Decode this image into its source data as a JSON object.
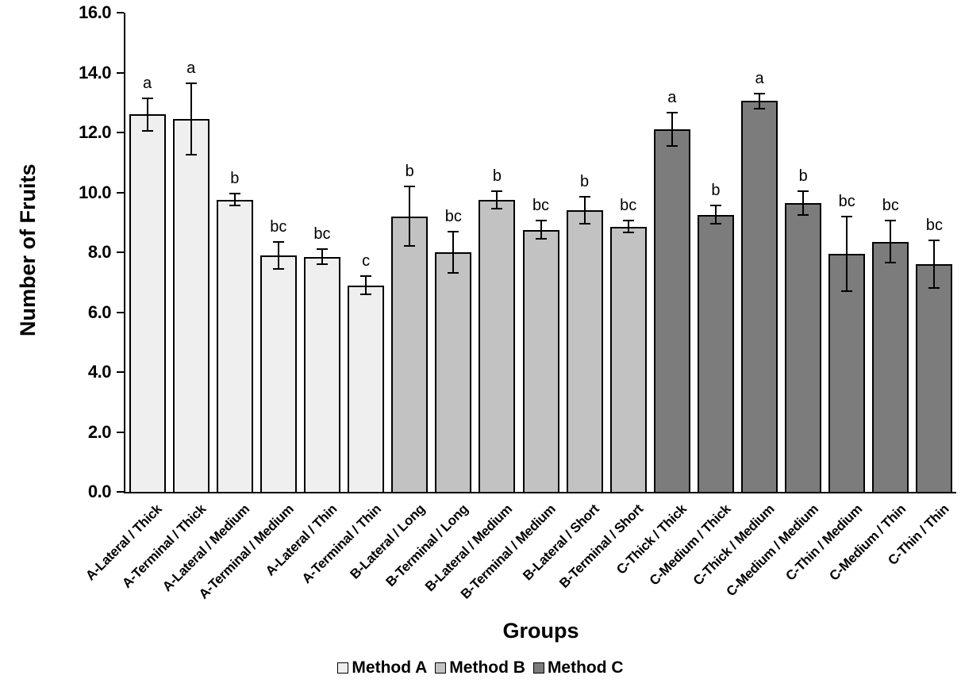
{
  "chart_data": {
    "type": "bar",
    "title": "",
    "xlabel": "Groups",
    "ylabel": "Number of Fruits",
    "ylim": [
      0,
      16
    ],
    "grid": false,
    "legend_position": "bottom",
    "yticks": [
      {
        "value": 0,
        "label": "0.0"
      },
      {
        "value": 2,
        "label": "2.0"
      },
      {
        "value": 4,
        "label": "4.0"
      },
      {
        "value": 6,
        "label": "6.0"
      },
      {
        "value": 8,
        "label": "8.0"
      },
      {
        "value": 10,
        "label": "10.0"
      },
      {
        "value": 12,
        "label": "12.0"
      },
      {
        "value": 14,
        "label": "14.0"
      },
      {
        "value": 16,
        "label": "16.0"
      }
    ],
    "legend": [
      {
        "label": "Method A",
        "color": "#efefef"
      },
      {
        "label": "Method B",
        "color": "#c2c2c2"
      },
      {
        "label": "Method C",
        "color": "#7c7c7c"
      }
    ],
    "categories": [
      "A-Lateral / Thick",
      "A-Terminal / Thick",
      "A-Lateral / Medium",
      "A-Terminal / Medium",
      "A-Lateral / Thin",
      "A-Terminal / Thin",
      "B-Lateral / Long",
      "B-Terminal / Long",
      "B-Lateral / Medium",
      "B-Terminal / Medium",
      "B-Lateral / Short",
      "B-Terminal / Short",
      "C-Thick / Thick",
      "C-Medium / Thick",
      "C-Thick / Medium",
      "C-Medium / Medium",
      "C-Thin / Medium",
      "C-Medium / Thin",
      "C-Thin / Thin"
    ],
    "bars": [
      {
        "category": "A-Lateral / Thick",
        "series": "Method A",
        "value": 12.6,
        "error": 0.55,
        "letter": "a"
      },
      {
        "category": "A-Terminal / Thick",
        "series": "Method A",
        "value": 12.45,
        "error": 1.2,
        "letter": "a"
      },
      {
        "category": "A-Lateral / Medium",
        "series": "Method A",
        "value": 9.75,
        "error": 0.2,
        "letter": "b"
      },
      {
        "category": "A-Terminal / Medium",
        "series": "Method A",
        "value": 7.9,
        "error": 0.45,
        "letter": "bc"
      },
      {
        "category": "A-Lateral / Thin",
        "series": "Method A",
        "value": 7.85,
        "error": 0.25,
        "letter": "bc"
      },
      {
        "category": "A-Terminal / Thin",
        "series": "Method A",
        "value": 6.9,
        "error": 0.3,
        "letter": "c"
      },
      {
        "category": "B-Lateral / Long",
        "series": "Method B",
        "value": 9.2,
        "error": 1.0,
        "letter": "b"
      },
      {
        "category": "B-Terminal / Long",
        "series": "Method B",
        "value": 8.0,
        "error": 0.7,
        "letter": "bc"
      },
      {
        "category": "B-Lateral / Medium",
        "series": "Method B",
        "value": 9.75,
        "error": 0.3,
        "letter": "b"
      },
      {
        "category": "B-Terminal / Medium",
        "series": "Method B",
        "value": 8.75,
        "error": 0.3,
        "letter": "bc"
      },
      {
        "category": "B-Lateral / Short",
        "series": "Method B",
        "value": 9.4,
        "error": 0.45,
        "letter": "b"
      },
      {
        "category": "B-Terminal / Short",
        "series": "Method B",
        "value": 8.85,
        "error": 0.2,
        "letter": "bc"
      },
      {
        "category": "C-Thick / Thick",
        "series": "Method C",
        "value": 12.1,
        "error": 0.55,
        "letter": "a"
      },
      {
        "category": "C-Medium / Thick",
        "series": "Method C",
        "value": 9.25,
        "error": 0.3,
        "letter": "b"
      },
      {
        "category": "C-Thick / Medium",
        "series": "Method C",
        "value": 13.05,
        "error": 0.25,
        "letter": "a"
      },
      {
        "category": "C-Medium / Medium",
        "series": "Method C",
        "value": 9.65,
        "error": 0.4,
        "letter": "b"
      },
      {
        "category": "C-Thin / Medium",
        "series": "Method C",
        "value": 7.95,
        "error": 1.25,
        "letter": "bc"
      },
      {
        "category": "C-Medium / Thin",
        "series": "Method C",
        "value": 8.35,
        "error": 0.7,
        "letter": "bc"
      },
      {
        "category": "C-Thin / Thin",
        "series": "Method C",
        "value": 7.6,
        "error": 0.8,
        "letter": "bc"
      }
    ]
  }
}
